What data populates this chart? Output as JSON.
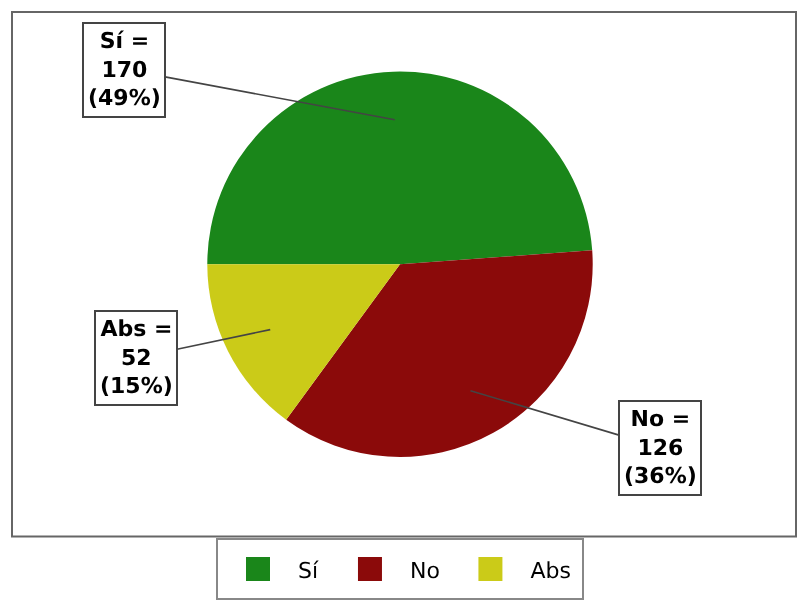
{
  "chart_data": {
    "type": "pie",
    "categories": [
      "Sí",
      "No",
      "Abs"
    ],
    "values": [
      170,
      126,
      52
    ],
    "colors": [
      "#1a861a",
      "#8b0a0a",
      "#cbcb18"
    ],
    "value_labels": [
      "Sí =\n170\n(49%)",
      "No =\n126\n(36%)",
      "Abs =\n52\n(15%)"
    ],
    "legend": "bottom"
  }
}
